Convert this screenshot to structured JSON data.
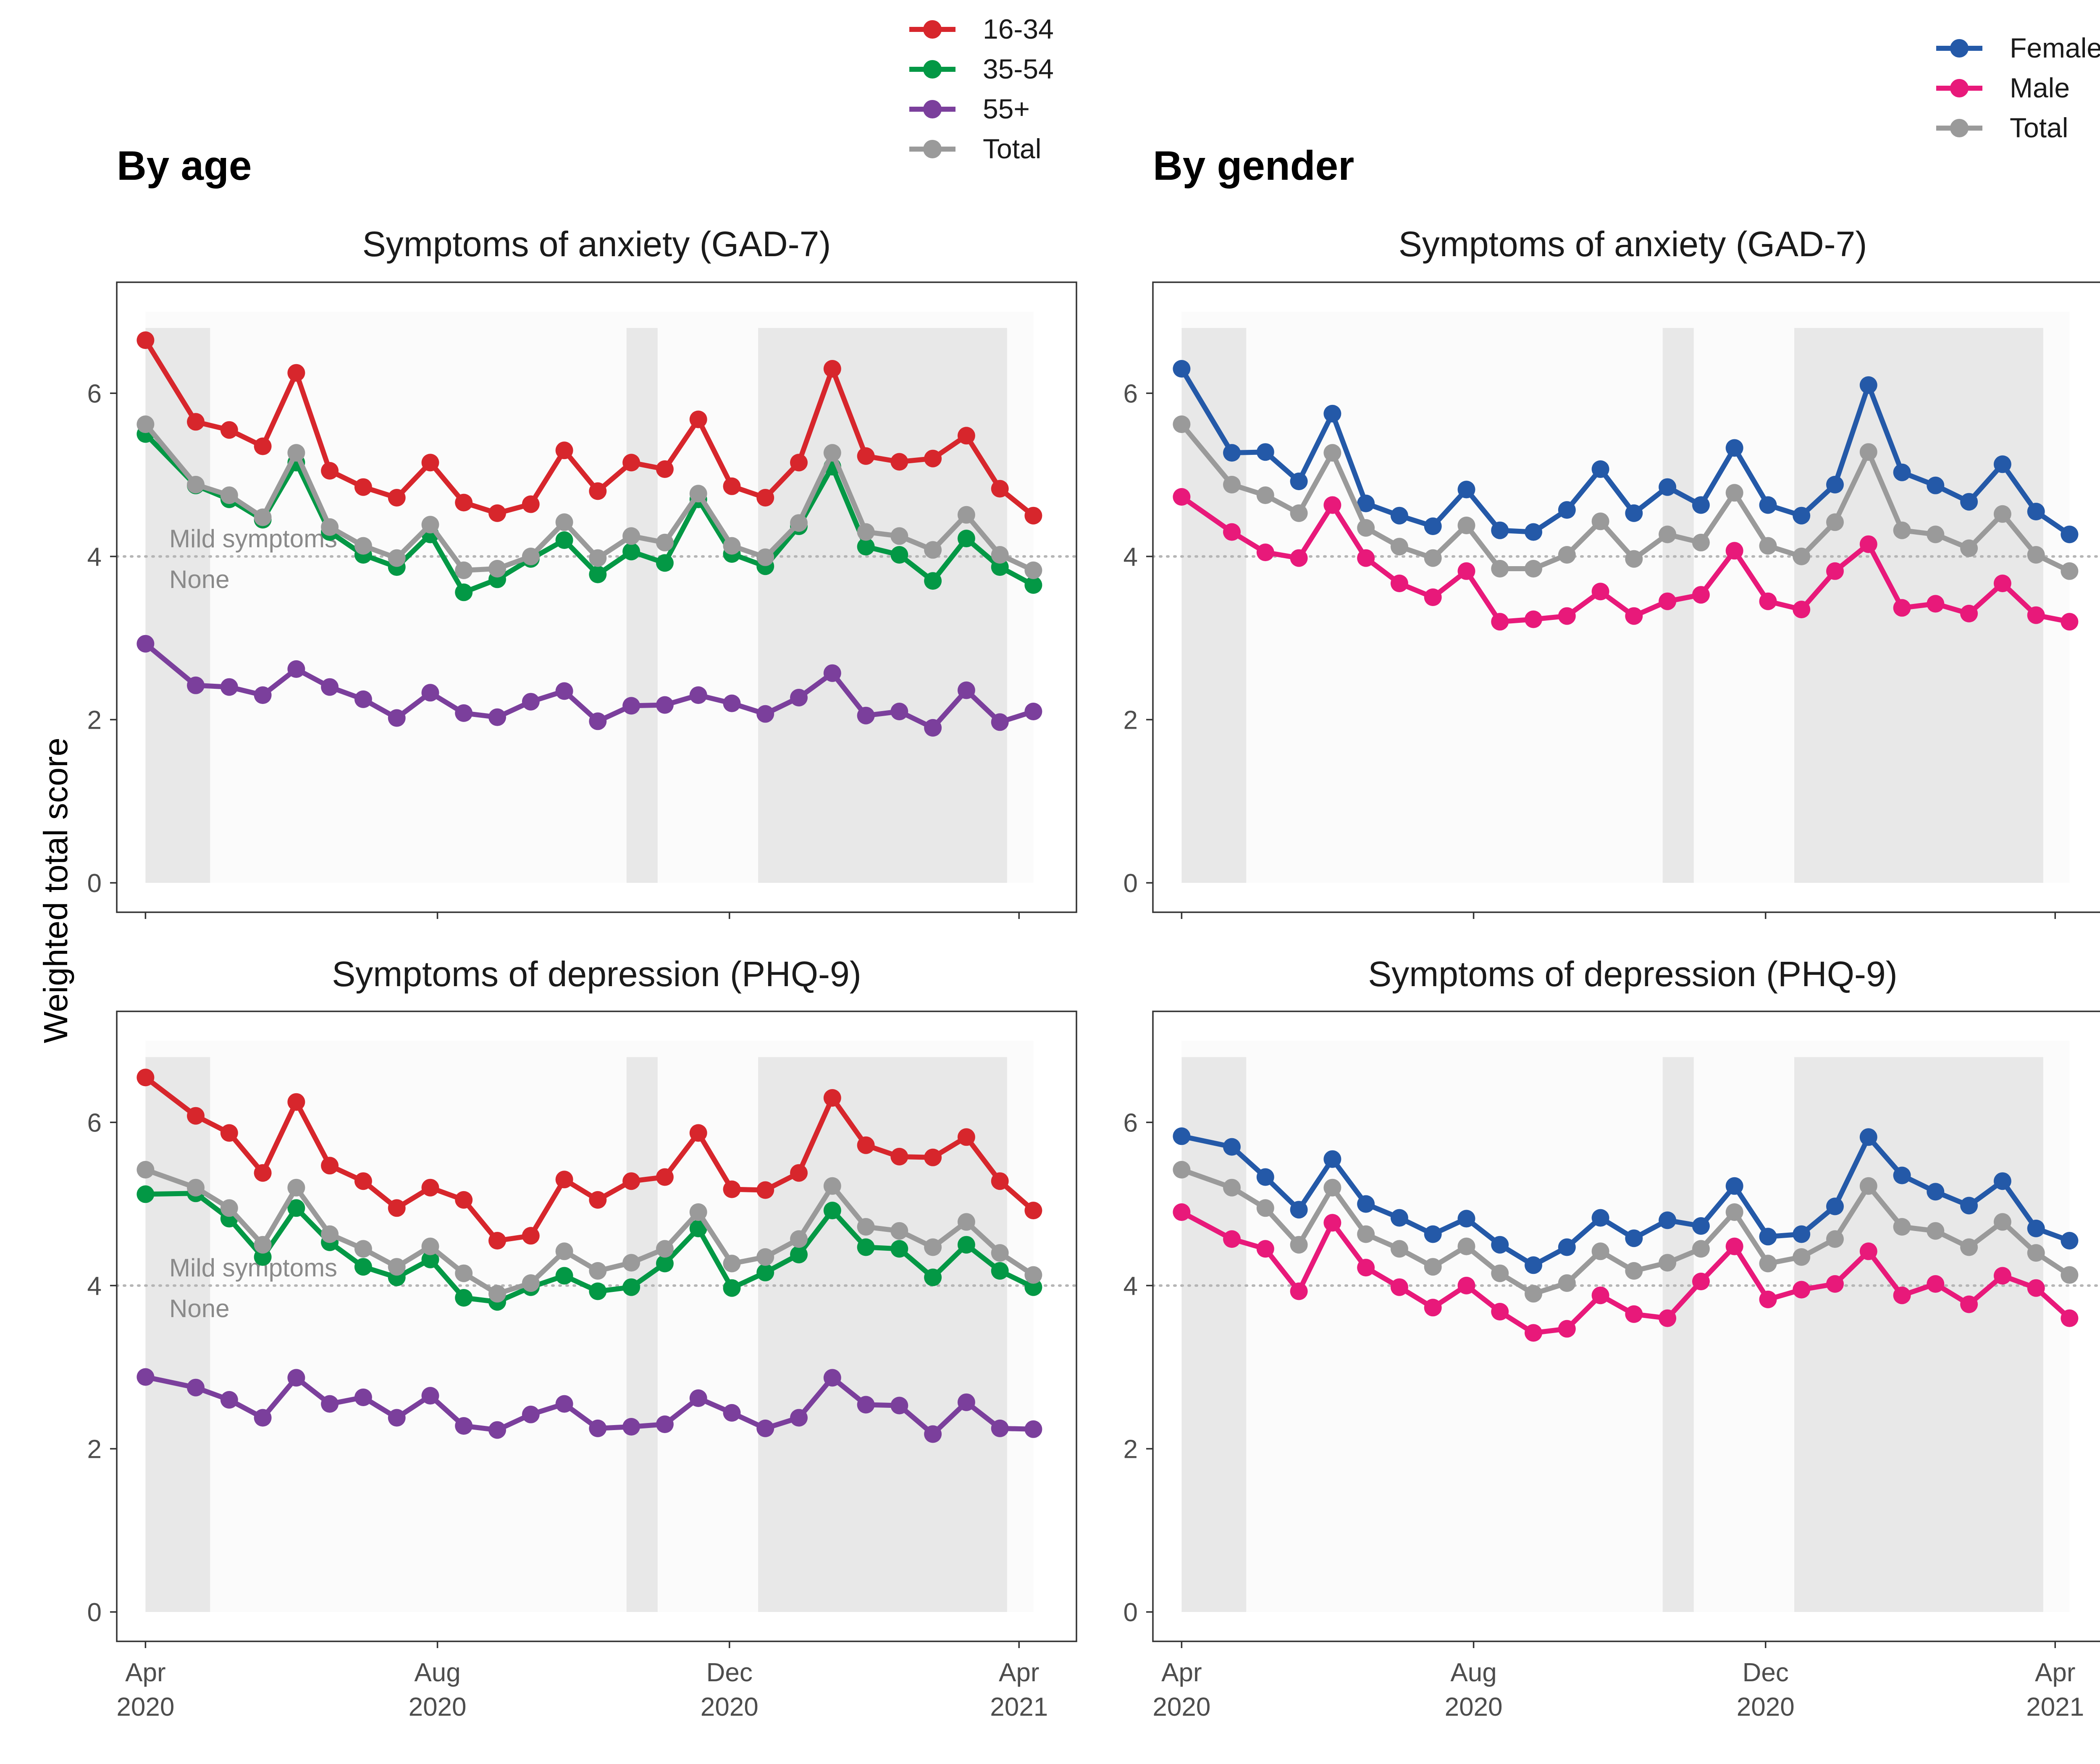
{
  "sections": {
    "age": {
      "title": "By age"
    },
    "gender": {
      "title": "By gender"
    }
  },
  "ylabel": "Weighted total score",
  "threshold": {
    "value": 4,
    "above_label": "Mild symptoms",
    "below_label": "None"
  },
  "legends": {
    "age": [
      {
        "name": "16-34",
        "color": "#D7262C"
      },
      {
        "name": "35-54",
        "color": "#039845"
      },
      {
        "name": "55+",
        "color": "#7B3F9C"
      },
      {
        "name": "Total",
        "color": "#9A9A9A"
      }
    ],
    "gender": [
      {
        "name": "Female",
        "color": "#2459A8"
      },
      {
        "name": "Male",
        "color": "#E8197A"
      },
      {
        "name": "Total",
        "color": "#9A9A9A"
      }
    ]
  },
  "x_ticks": [
    {
      "date": "2020-04-01",
      "label": "Apr\n2020"
    },
    {
      "date": "2020-08-01",
      "label": "Aug\n2020"
    },
    {
      "date": "2020-12-01",
      "label": "Dec\n2020"
    },
    {
      "date": "2021-04-01",
      "label": "Apr\n2021"
    }
  ],
  "y_ticks": [
    0,
    2,
    4,
    6
  ],
  "chart_data": [
    {
      "type": "line",
      "section": "age",
      "title": "Symptoms of anxiety (GAD-7)",
      "ylabel": "Weighted total score",
      "ylim": [
        0,
        7
      ],
      "xlim": [
        "2020-03-20",
        "2021-04-25"
      ],
      "grid": false,
      "legend_placement": "top",
      "shaded_periods": [
        [
          "2020-04-01",
          "2020-04-28"
        ],
        [
          "2020-10-19",
          "2020-11-01"
        ],
        [
          "2020-12-13",
          "2021-03-27"
        ]
      ],
      "x": [
        "2020-04-01",
        "2020-04-22",
        "2020-05-06",
        "2020-05-20",
        "2020-06-03",
        "2020-06-17",
        "2020-07-01",
        "2020-07-15",
        "2020-07-29",
        "2020-08-12",
        "2020-08-26",
        "2020-09-09",
        "2020-09-23",
        "2020-10-07",
        "2020-10-21",
        "2020-11-04",
        "2020-11-18",
        "2020-12-02",
        "2020-12-16",
        "2020-12-30",
        "2021-01-13",
        "2021-01-27",
        "2021-02-10",
        "2021-02-24",
        "2021-03-10",
        "2021-03-24",
        "2021-04-07"
      ],
      "series": [
        {
          "name": "16-34",
          "values": [
            6.65,
            5.65,
            5.55,
            5.35,
            6.25,
            5.05,
            4.85,
            4.72,
            5.15,
            4.66,
            4.53,
            4.64,
            5.3,
            4.8,
            5.15,
            5.07,
            5.68,
            4.86,
            4.72,
            5.15,
            6.3,
            5.23,
            5.16,
            5.2,
            5.48,
            4.83,
            4.5
          ]
        },
        {
          "name": "35-54",
          "values": [
            5.5,
            4.87,
            4.7,
            4.45,
            5.15,
            4.3,
            4.02,
            3.87,
            4.27,
            3.56,
            3.72,
            3.97,
            4.2,
            3.78,
            4.06,
            3.92,
            4.7,
            4.03,
            3.88,
            4.37,
            5.1,
            4.12,
            4.02,
            3.7,
            4.22,
            3.87,
            3.65
          ]
        },
        {
          "name": "55+",
          "values": [
            2.93,
            2.42,
            2.4,
            2.3,
            2.62,
            2.4,
            2.25,
            2.02,
            2.33,
            2.08,
            2.03,
            2.22,
            2.35,
            1.98,
            2.17,
            2.18,
            2.3,
            2.2,
            2.07,
            2.27,
            2.57,
            2.05,
            2.1,
            1.9,
            2.36,
            1.97,
            2.1
          ]
        },
        {
          "name": "Total",
          "values": [
            5.62,
            4.88,
            4.75,
            4.48,
            5.27,
            4.36,
            4.13,
            3.98,
            4.39,
            3.83,
            3.85,
            4.0,
            4.42,
            3.98,
            4.25,
            4.17,
            4.77,
            4.13,
            3.99,
            4.41,
            5.27,
            4.3,
            4.25,
            4.08,
            4.51,
            4.02,
            3.83
          ]
        }
      ]
    },
    {
      "type": "line",
      "section": "age",
      "title": "Symptoms of depression (PHQ-9)",
      "ylabel": "Weighted total score",
      "ylim": [
        0,
        7
      ],
      "xlim": [
        "2020-03-20",
        "2021-04-25"
      ],
      "grid": false,
      "legend_placement": "top",
      "shaded_periods": [
        [
          "2020-04-01",
          "2020-04-28"
        ],
        [
          "2020-10-19",
          "2020-11-01"
        ],
        [
          "2020-12-13",
          "2021-03-27"
        ]
      ],
      "x": [
        "2020-04-01",
        "2020-04-22",
        "2020-05-06",
        "2020-05-20",
        "2020-06-03",
        "2020-06-17",
        "2020-07-01",
        "2020-07-15",
        "2020-07-29",
        "2020-08-12",
        "2020-08-26",
        "2020-09-09",
        "2020-09-23",
        "2020-10-07",
        "2020-10-21",
        "2020-11-04",
        "2020-11-18",
        "2020-12-02",
        "2020-12-16",
        "2020-12-30",
        "2021-01-13",
        "2021-01-27",
        "2021-02-10",
        "2021-02-24",
        "2021-03-10",
        "2021-03-24",
        "2021-04-07"
      ],
      "series": [
        {
          "name": "16-34",
          "values": [
            6.55,
            6.08,
            5.87,
            5.38,
            6.25,
            5.47,
            5.28,
            4.95,
            5.2,
            5.05,
            4.55,
            4.61,
            5.3,
            5.05,
            5.28,
            5.33,
            5.87,
            5.18,
            5.17,
            5.38,
            6.3,
            5.72,
            5.58,
            5.57,
            5.82,
            5.28,
            4.92
          ]
        },
        {
          "name": "35-54",
          "values": [
            5.12,
            5.13,
            4.82,
            4.35,
            4.95,
            4.53,
            4.23,
            4.1,
            4.32,
            3.85,
            3.8,
            3.98,
            4.12,
            3.93,
            3.98,
            4.27,
            4.7,
            3.97,
            4.16,
            4.38,
            4.92,
            4.47,
            4.45,
            4.1,
            4.5,
            4.18,
            3.98
          ]
        },
        {
          "name": "55+",
          "values": [
            2.88,
            2.75,
            2.6,
            2.38,
            2.87,
            2.55,
            2.63,
            2.38,
            2.65,
            2.28,
            2.23,
            2.42,
            2.55,
            2.25,
            2.27,
            2.3,
            2.62,
            2.44,
            2.25,
            2.38,
            2.87,
            2.54,
            2.53,
            2.18,
            2.57,
            2.25,
            2.24
          ]
        },
        {
          "name": "Total",
          "values": [
            5.42,
            5.2,
            4.95,
            4.5,
            5.2,
            4.63,
            4.45,
            4.23,
            4.48,
            4.15,
            3.9,
            4.03,
            4.42,
            4.18,
            4.28,
            4.45,
            4.9,
            4.27,
            4.35,
            4.57,
            5.22,
            4.72,
            4.67,
            4.47,
            4.78,
            4.4,
            4.13
          ]
        }
      ]
    },
    {
      "type": "line",
      "section": "gender",
      "title": "Symptoms of anxiety (GAD-7)",
      "ylabel": "Weighted total score",
      "ylim": [
        0,
        7
      ],
      "xlim": [
        "2020-03-20",
        "2021-04-25"
      ],
      "grid": false,
      "legend_placement": "top-right",
      "shaded_periods": [
        [
          "2020-04-01",
          "2020-04-28"
        ],
        [
          "2020-10-19",
          "2020-11-01"
        ],
        [
          "2020-12-13",
          "2021-03-27"
        ]
      ],
      "x": [
        "2020-04-01",
        "2020-04-22",
        "2020-05-06",
        "2020-05-20",
        "2020-06-03",
        "2020-06-17",
        "2020-07-01",
        "2020-07-15",
        "2020-07-29",
        "2020-08-12",
        "2020-08-26",
        "2020-09-09",
        "2020-09-23",
        "2020-10-07",
        "2020-10-21",
        "2020-11-04",
        "2020-11-18",
        "2020-12-02",
        "2020-12-16",
        "2020-12-30",
        "2021-01-13",
        "2021-01-27",
        "2021-02-10",
        "2021-02-24",
        "2021-03-10",
        "2021-03-24",
        "2021-04-07"
      ],
      "series": [
        {
          "name": "Female",
          "values": [
            6.3,
            5.27,
            5.28,
            4.92,
            5.75,
            4.65,
            4.5,
            4.37,
            4.82,
            4.32,
            4.3,
            4.57,
            5.07,
            4.53,
            4.85,
            4.63,
            5.33,
            4.63,
            4.5,
            4.88,
            6.1,
            5.03,
            4.87,
            4.67,
            5.13,
            4.55,
            4.27
          ]
        },
        {
          "name": "Male",
          "values": [
            4.73,
            4.3,
            4.05,
            3.98,
            4.63,
            3.98,
            3.67,
            3.5,
            3.82,
            3.2,
            3.23,
            3.27,
            3.57,
            3.27,
            3.45,
            3.53,
            4.07,
            3.45,
            3.35,
            3.82,
            4.15,
            3.37,
            3.42,
            3.3,
            3.67,
            3.28,
            3.2
          ]
        },
        {
          "name": "Total",
          "values": [
            5.62,
            4.88,
            4.75,
            4.53,
            5.27,
            4.35,
            4.12,
            3.98,
            4.38,
            3.85,
            3.85,
            4.02,
            4.43,
            3.97,
            4.27,
            4.17,
            4.78,
            4.13,
            4.0,
            4.42,
            5.28,
            4.32,
            4.27,
            4.1,
            4.52,
            4.02,
            3.82
          ]
        }
      ]
    },
    {
      "type": "line",
      "section": "gender",
      "title": "Symptoms of depression (PHQ-9)",
      "ylabel": "Weighted total score",
      "ylim": [
        0,
        7
      ],
      "xlim": [
        "2020-03-20",
        "2021-04-25"
      ],
      "grid": false,
      "legend_placement": "top-right",
      "shaded_periods": [
        [
          "2020-04-01",
          "2020-04-28"
        ],
        [
          "2020-10-19",
          "2020-11-01"
        ],
        [
          "2020-12-13",
          "2021-03-27"
        ]
      ],
      "x": [
        "2020-04-01",
        "2020-04-22",
        "2020-05-06",
        "2020-05-20",
        "2020-06-03",
        "2020-06-17",
        "2020-07-01",
        "2020-07-15",
        "2020-07-29",
        "2020-08-12",
        "2020-08-26",
        "2020-09-09",
        "2020-09-23",
        "2020-10-07",
        "2020-10-21",
        "2020-11-04",
        "2020-11-18",
        "2020-12-02",
        "2020-12-16",
        "2020-12-30",
        "2021-01-13",
        "2021-01-27",
        "2021-02-10",
        "2021-02-24",
        "2021-03-10",
        "2021-03-24",
        "2021-04-07"
      ],
      "series": [
        {
          "name": "Female",
          "values": [
            5.83,
            5.7,
            5.33,
            4.93,
            5.55,
            5.0,
            4.83,
            4.63,
            4.82,
            4.5,
            4.25,
            4.47,
            4.83,
            4.58,
            4.8,
            4.73,
            5.22,
            4.6,
            4.63,
            4.97,
            5.82,
            5.35,
            5.15,
            4.98,
            5.28,
            4.7,
            4.55
          ]
        },
        {
          "name": "Male",
          "values": [
            4.9,
            4.57,
            4.45,
            3.93,
            4.77,
            4.22,
            3.98,
            3.73,
            4.0,
            3.68,
            3.42,
            3.47,
            3.88,
            3.65,
            3.6,
            4.05,
            4.48,
            3.83,
            3.95,
            4.02,
            4.42,
            3.88,
            4.02,
            3.77,
            4.12,
            3.97,
            3.6
          ]
        },
        {
          "name": "Total",
          "values": [
            5.42,
            5.2,
            4.95,
            4.5,
            5.2,
            4.63,
            4.45,
            4.23,
            4.48,
            4.15,
            3.9,
            4.03,
            4.42,
            4.18,
            4.28,
            4.45,
            4.9,
            4.27,
            4.35,
            4.57,
            5.22,
            4.72,
            4.67,
            4.47,
            4.78,
            4.4,
            4.13
          ]
        }
      ]
    }
  ]
}
